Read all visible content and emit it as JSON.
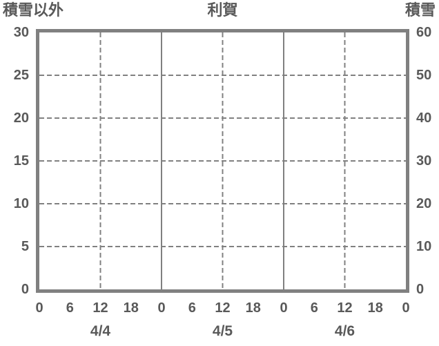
{
  "titles": {
    "left": "積雪以外",
    "center": "利賀",
    "right": "積雪"
  },
  "colors": {
    "axis": "#808080",
    "grid": "#808080",
    "text": "#595959",
    "background": "#ffffff"
  },
  "chart_data": {
    "type": "line",
    "title": "利賀",
    "subtitle": "",
    "legend": false,
    "grid": true,
    "series": [],
    "left_axis": {
      "label": "積雪以外",
      "min": 0,
      "max": 30,
      "step": 5,
      "tick_labels": [
        "0",
        "5",
        "10",
        "15",
        "20",
        "25",
        "30"
      ]
    },
    "right_axis": {
      "label": "積雪",
      "min": 0,
      "max": 60,
      "step": 10,
      "tick_labels": [
        "0",
        "10",
        "20",
        "30",
        "40",
        "50",
        "60"
      ]
    },
    "x_axis": {
      "total_hours": 72,
      "tick_interval_hours": 6,
      "tick_labels": [
        "0",
        "6",
        "12",
        "18",
        "0",
        "6",
        "12",
        "18",
        "0",
        "6",
        "12",
        "18",
        "0"
      ],
      "date_labels": [
        "4/4",
        "4/5",
        "4/6"
      ],
      "dashed_gridline_hours": [
        12,
        36,
        60
      ],
      "solid_gridline_hours": [
        24,
        48
      ]
    },
    "horizontal_gridline_values": [
      5,
      10,
      15,
      20,
      25
    ]
  }
}
